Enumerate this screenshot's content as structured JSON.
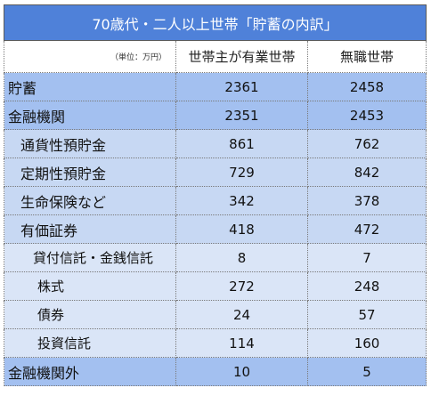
{
  "chart_data": {
    "type": "table",
    "title": "70歳代・二人以上世帯「貯蓄の内訳」",
    "unit_note": "（単位：万円）",
    "columns": [
      "世帯主が有業世帯",
      "無職世帯"
    ],
    "rows": [
      {
        "label": "貯蓄",
        "level": 0,
        "values": [
          "2361",
          "2458"
        ]
      },
      {
        "label": "金融機関",
        "level": 0,
        "values": [
          "2351",
          "2453"
        ]
      },
      {
        "label": "通貨性預貯金",
        "level": 1,
        "values": [
          "861",
          "762"
        ]
      },
      {
        "label": "定期性預貯金",
        "level": 1,
        "values": [
          "729",
          "842"
        ]
      },
      {
        "label": "生命保険など",
        "level": 1,
        "values": [
          "342",
          "378"
        ]
      },
      {
        "label": "有価証券",
        "level": 1,
        "values": [
          "418",
          "472"
        ]
      },
      {
        "label": "貸付信託・金銭信託",
        "level": 2,
        "values": [
          "8",
          "7"
        ]
      },
      {
        "label": "株式",
        "level": 3,
        "values": [
          "272",
          "248"
        ]
      },
      {
        "label": "債券",
        "level": 3,
        "values": [
          "24",
          "57"
        ]
      },
      {
        "label": "投資信託",
        "level": 3,
        "values": [
          "114",
          "160"
        ]
      },
      {
        "label": "金融機関外",
        "level": 0,
        "values": [
          "10",
          "5"
        ]
      }
    ]
  }
}
